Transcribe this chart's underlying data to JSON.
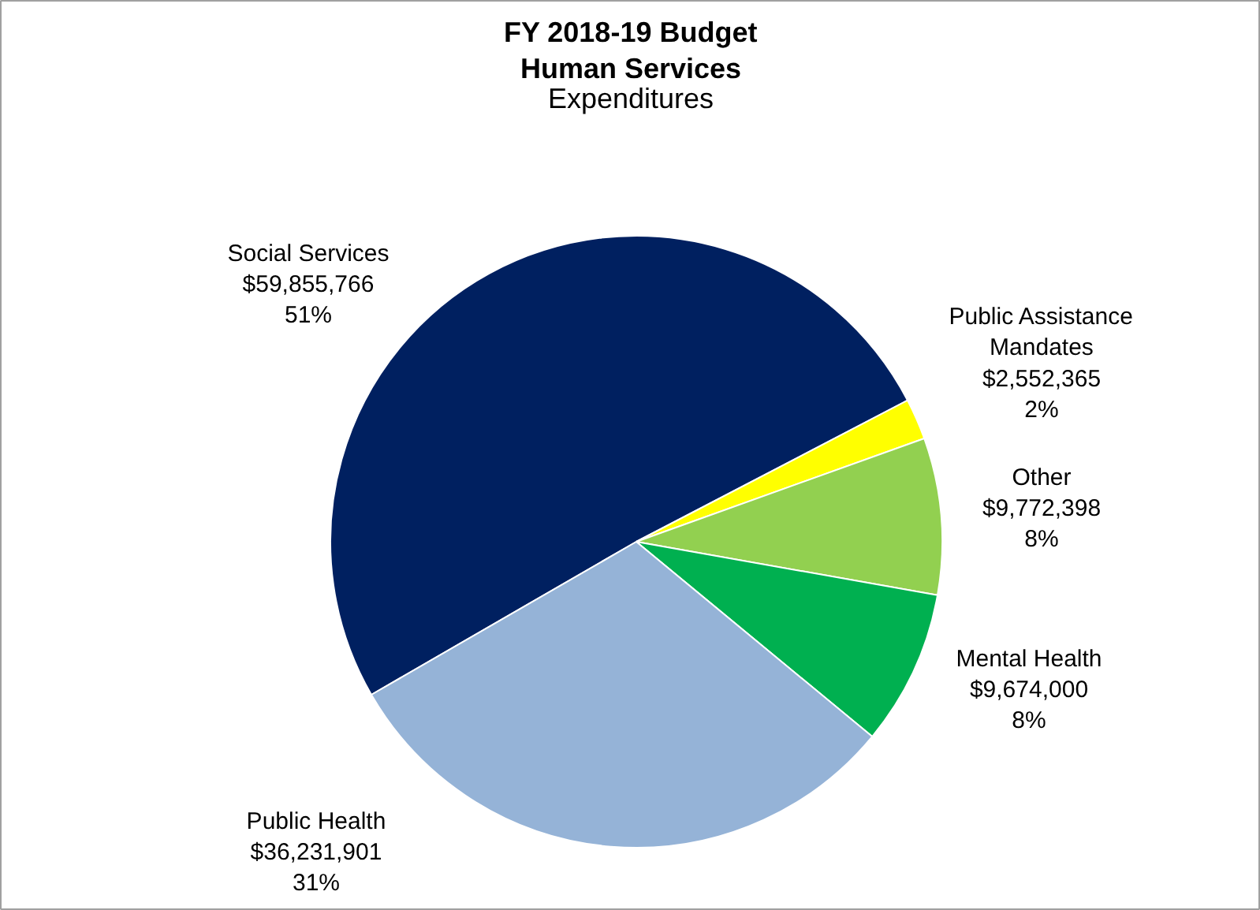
{
  "chart_data": {
    "type": "pie",
    "title": "FY 2018-19 Budget\nHuman Services",
    "subtitle": "Expenditures",
    "categories": [
      "Social Services",
      "Public Assistance Mandates",
      "Other",
      "Mental Health",
      "Public Health"
    ],
    "values": [
      59855766,
      2552365,
      9772398,
      9674000,
      36231901
    ],
    "colors": [
      "#002060",
      "#ffff00",
      "#92d050",
      "#00b050",
      "#95b3d7"
    ],
    "value_labels": [
      "$59,855,766\n51%",
      "$2,552,365\n2%",
      "$9,772,398\n8%",
      "$9,674,000\n8%",
      "$36,231,901\n31%"
    ]
  }
}
